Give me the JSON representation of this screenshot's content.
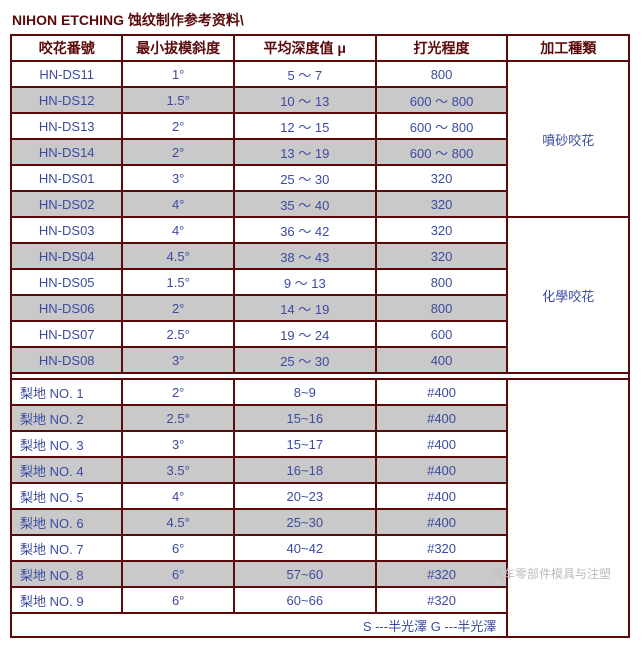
{
  "title": "NIHON ETCHING 蚀纹制作参考资料\\",
  "headers": [
    "咬花番號",
    "最小拔模斜度",
    "平均深度值 μ",
    "打光程度",
    "加工種類"
  ],
  "group1": {
    "cat": "噴砂咬花",
    "rows": [
      {
        "n": "HN-DS11",
        "a": "1°",
        "d": "5 ～ 7",
        "p": "800",
        "shade": false
      },
      {
        "n": "HN-DS12",
        "a": "1.5°",
        "d": "10 ～ 13",
        "p": "600 ～ 800",
        "shade": true
      },
      {
        "n": "HN-DS13",
        "a": "2°",
        "d": "12 ～ 15",
        "p": "600 ～ 800",
        "shade": false
      },
      {
        "n": "HN-DS14",
        "a": "2°",
        "d": "13 ～ 19",
        "p": "600 ～ 800",
        "shade": true
      },
      {
        "n": "HN-DS01",
        "a": "3°",
        "d": "25 ～ 30",
        "p": "320",
        "shade": false
      },
      {
        "n": "HN-DS02",
        "a": "4°",
        "d": "35 ～ 40",
        "p": "320",
        "shade": true
      }
    ]
  },
  "group2": {
    "cat": "化學咬花",
    "rows": [
      {
        "n": "HN-DS03",
        "a": "4°",
        "d": "36 ～ 42",
        "p": "320",
        "shade": false
      },
      {
        "n": "HN-DS04",
        "a": "4.5°",
        "d": "38 ～ 43",
        "p": "320",
        "shade": true
      },
      {
        "n": "HN-DS05",
        "a": "1.5°",
        "d": "9 ～ 13",
        "p": "800",
        "shade": false
      },
      {
        "n": "HN-DS06",
        "a": "2°",
        "d": "14 ～ 19",
        "p": "800",
        "shade": true
      },
      {
        "n": "HN-DS07",
        "a": "2.5°",
        "d": "19 ～ 24",
        "p": "600",
        "shade": false
      },
      {
        "n": "HN-DS08",
        "a": "3°",
        "d": "25 ～ 30",
        "p": "400",
        "shade": true
      }
    ]
  },
  "group3": {
    "rows": [
      {
        "n": "梨地 NO.   1",
        "a": "2°",
        "d": "8~9",
        "p": "#400",
        "shade": false
      },
      {
        "n": "梨地 NO.   2",
        "a": "2.5°",
        "d": "15~16",
        "p": "#400",
        "shade": true
      },
      {
        "n": "梨地 NO.   3",
        "a": "3°",
        "d": "15~17",
        "p": "#400",
        "shade": false
      },
      {
        "n": "梨地 NO.   4",
        "a": "3.5°",
        "d": "16~18",
        "p": "#400",
        "shade": true
      },
      {
        "n": "梨地 NO.   5",
        "a": "4°",
        "d": "20~23",
        "p": "#400",
        "shade": false
      },
      {
        "n": "梨地 NO.   6",
        "a": "4.5°",
        "d": "25~30",
        "p": "#400",
        "shade": true
      },
      {
        "n": "梨地 NO.   7",
        "a": "6°",
        "d": "40~42",
        "p": "#320",
        "shade": false
      },
      {
        "n": "梨地 NO.   8",
        "a": "6°",
        "d": "57~60",
        "p": "#320",
        "shade": true
      },
      {
        "n": "梨地 NO.   9",
        "a": "6°",
        "d": "60~66",
        "p": "#320",
        "shade": false
      }
    ]
  },
  "footer": "S ---半光澤     G ---半光澤",
  "watermark": "汽车零部件模具与注塑"
}
